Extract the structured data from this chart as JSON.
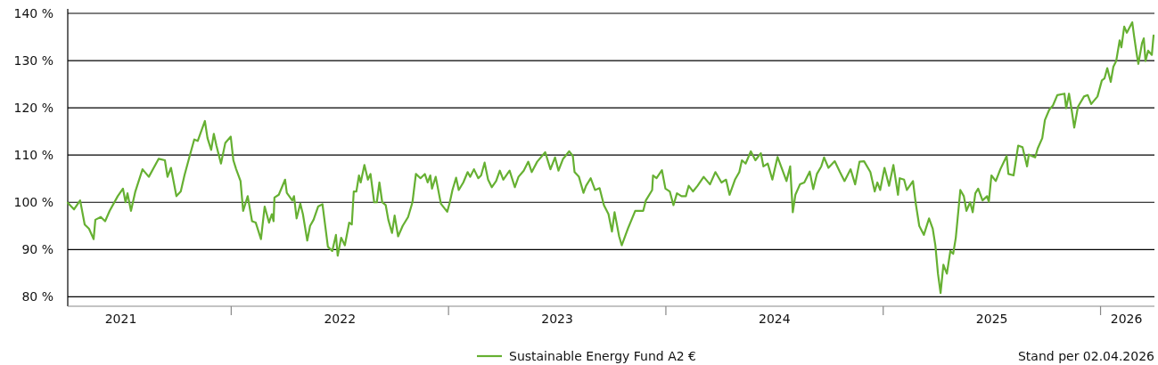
{
  "chart_data": {
    "type": "line",
    "xlim": [
      2021.25,
      2026.25
    ],
    "ylim": [
      78,
      140
    ],
    "xticks": [
      {
        "value": 2021.492,
        "label": "2021"
      },
      {
        "value": 2022,
        "label": null
      },
      {
        "value": 2022.5,
        "label": "2022"
      },
      {
        "value": 2023,
        "label": null
      },
      {
        "value": 2023.5,
        "label": "2023"
      },
      {
        "value": 2024,
        "label": null
      },
      {
        "value": 2024.5,
        "label": "2024"
      },
      {
        "value": 2025,
        "label": null
      },
      {
        "value": 2025.5,
        "label": "2025"
      },
      {
        "value": 2026,
        "label": null
      },
      {
        "value": 2026.119,
        "label": "2026"
      }
    ],
    "yticks": [
      {
        "value": 80,
        "label": "80 %"
      },
      {
        "value": 90,
        "label": "90 %"
      },
      {
        "value": 100,
        "label": "100 %"
      },
      {
        "value": 110,
        "label": "110 %"
      },
      {
        "value": 120,
        "label": "120 %"
      },
      {
        "value": 130,
        "label": "130 %"
      },
      {
        "value": 140,
        "label": "140 %"
      }
    ],
    "grid": "y",
    "legend": "bottom",
    "line_style": "solid",
    "annotations": [
      "Stand per 02.04.2026"
    ],
    "series": [
      {
        "name": "Sustainable Energy Fund A2 €",
        "color": "#66b032",
        "x": [
          2021.25,
          2021.279,
          2021.307,
          2021.328,
          2021.348,
          2021.369,
          2021.377,
          2021.402,
          2021.422,
          2021.443,
          2021.48,
          2021.504,
          2021.516,
          2021.525,
          2021.541,
          2021.561,
          2021.594,
          2021.623,
          2021.668,
          2021.697,
          2021.709,
          2021.725,
          2021.75,
          2021.77,
          2021.787,
          2021.811,
          2021.832,
          2021.848,
          2021.881,
          2021.893,
          2021.91,
          2021.922,
          2021.934,
          2021.955,
          2021.975,
          2022.0,
          2022.012,
          2022.025,
          2022.045,
          2022.057,
          2022.078,
          2022.098,
          2022.115,
          2022.139,
          2022.156,
          2022.176,
          2022.189,
          2022.197,
          2022.201,
          2022.221,
          2022.25,
          2022.258,
          2022.283,
          2022.291,
          2022.303,
          2022.32,
          2022.332,
          2022.352,
          2022.365,
          2022.381,
          2022.402,
          2022.422,
          2022.447,
          2022.467,
          2022.484,
          2022.492,
          2022.508,
          2022.525,
          2022.545,
          2022.557,
          2022.566,
          2022.578,
          2022.59,
          2022.598,
          2022.615,
          2022.631,
          2022.643,
          2022.66,
          2022.672,
          2022.684,
          2022.697,
          2022.713,
          2022.725,
          2022.742,
          2022.754,
          2022.77,
          2022.791,
          2022.816,
          2022.836,
          2022.852,
          2022.873,
          2022.893,
          2022.906,
          2022.918,
          2022.926,
          2022.943,
          2022.967,
          2022.996,
          2023.008,
          2023.02,
          2023.037,
          2023.049,
          2023.07,
          2023.09,
          2023.102,
          2023.119,
          2023.139,
          2023.152,
          2023.168,
          2023.184,
          2023.201,
          2023.221,
          2023.238,
          2023.254,
          2023.283,
          2023.307,
          2023.324,
          2023.348,
          2023.369,
          2023.385,
          2023.41,
          2023.447,
          2023.471,
          2023.492,
          2023.508,
          2023.529,
          2023.557,
          2023.574,
          2023.582,
          2023.602,
          2023.623,
          2023.635,
          2023.656,
          2023.676,
          2023.697,
          2023.717,
          2023.738,
          2023.754,
          2023.766,
          2023.787,
          2023.799,
          2023.828,
          2023.861,
          2023.898,
          2023.91,
          2023.939,
          2023.943,
          2023.959,
          2023.984,
          2024.0,
          2024.02,
          2024.037,
          2024.053,
          2024.074,
          2024.094,
          2024.107,
          2024.127,
          2024.148,
          2024.176,
          2024.205,
          2024.23,
          2024.258,
          2024.279,
          2024.295,
          2024.32,
          2024.34,
          2024.352,
          2024.369,
          2024.393,
          2024.414,
          2024.439,
          2024.451,
          2024.471,
          2024.492,
          2024.516,
          2024.537,
          2024.557,
          2024.574,
          2024.586,
          2024.598,
          2024.619,
          2024.639,
          2024.664,
          2024.68,
          2024.697,
          2024.717,
          2024.73,
          2024.75,
          2024.779,
          2024.803,
          2024.824,
          2024.852,
          2024.873,
          2024.893,
          2024.914,
          2024.943,
          2024.963,
          2024.975,
          2024.988,
          2025.008,
          2025.029,
          2025.049,
          2025.07,
          2025.078,
          2025.098,
          2025.111,
          2025.139,
          2025.152,
          2025.168,
          2025.189,
          2025.213,
          2025.23,
          2025.242,
          2025.254,
          2025.266,
          2025.279,
          2025.295,
          2025.311,
          2025.324,
          2025.336,
          2025.357,
          2025.373,
          2025.385,
          2025.402,
          2025.414,
          2025.426,
          2025.439,
          2025.459,
          2025.48,
          2025.488,
          2025.5,
          2025.52,
          2025.541,
          2025.57,
          2025.578,
          2025.602,
          2025.623,
          2025.643,
          2025.664,
          2025.672,
          2025.701,
          2025.713,
          2025.734,
          2025.746,
          2025.766,
          2025.783,
          2025.803,
          2025.836,
          2025.844,
          2025.857,
          2025.869,
          2025.881,
          2025.898,
          2025.926,
          2025.943,
          2025.959,
          2025.988,
          2026.008,
          2026.02,
          2026.033,
          2026.049,
          2026.061,
          2026.074,
          2026.09,
          2026.098,
          2026.111,
          2026.123,
          2026.148,
          2026.156,
          2026.168,
          2026.176,
          2026.193,
          2026.201,
          2026.209,
          2026.221,
          2026.238,
          2026.246
        ],
        "values": [
          99.9,
          98.5,
          100.4,
          95.3,
          94.4,
          92.2,
          96.3,
          96.9,
          96,
          98.2,
          101.3,
          102.9,
          100,
          101.9,
          98.2,
          102.3,
          107,
          105.4,
          109.2,
          108.9,
          105.4,
          107.3,
          101.3,
          102.3,
          105.7,
          109.8,
          113.3,
          113,
          117.2,
          113.6,
          111.1,
          114.5,
          112,
          108.2,
          112.6,
          113.9,
          108.9,
          107,
          104.5,
          98.2,
          101.3,
          96,
          95.7,
          92.2,
          99.1,
          95.7,
          97.5,
          96,
          101,
          101.6,
          104.8,
          102,
          100.4,
          101.3,
          96.6,
          99.7,
          97.5,
          91.9,
          95,
          96.3,
          99.1,
          99.6,
          90.6,
          89.7,
          93.1,
          88.7,
          92.5,
          90.9,
          95.7,
          95.3,
          102.3,
          102.3,
          105.7,
          104.2,
          107.9,
          104.8,
          106,
          100,
          100,
          104.2,
          100,
          99.4,
          96.3,
          93.5,
          97.2,
          92.8,
          95,
          96.9,
          100,
          106,
          105.1,
          106,
          104.2,
          105.7,
          102.9,
          105.4,
          99.7,
          98,
          100,
          102.6,
          105.2,
          102.6,
          104.2,
          106.4,
          105.4,
          107,
          105.1,
          105.7,
          108.4,
          104.8,
          103.2,
          104.5,
          106.7,
          104.8,
          106.7,
          103.2,
          105.4,
          106.7,
          108.6,
          106.4,
          108.6,
          110.6,
          107,
          109.5,
          106.7,
          109.2,
          110.8,
          109.8,
          106.4,
          105.4,
          102,
          103.5,
          105.1,
          102.6,
          103,
          99.4,
          97.5,
          93.8,
          97.9,
          92.8,
          90.9,
          94.5,
          98.2,
          98.2,
          100.4,
          102.6,
          105.7,
          105.1,
          106.8,
          102.9,
          102.3,
          99.4,
          101.9,
          101.3,
          101.3,
          103.5,
          102.3,
          103.5,
          105.4,
          103.8,
          106.4,
          104.2,
          104.8,
          101.6,
          104.8,
          106.4,
          108.9,
          108.2,
          110.8,
          108.9,
          110.4,
          107.6,
          108.2,
          104.8,
          109.6,
          107,
          104.5,
          107.6,
          97.9,
          101.6,
          103.8,
          104.2,
          106.5,
          102.8,
          106,
          107.6,
          109.5,
          107.3,
          108.7,
          106.4,
          104.5,
          107,
          103.8,
          108.6,
          108.7,
          106.4,
          102.3,
          104.2,
          102.6,
          107.3,
          103.5,
          107.9,
          101.6,
          105.1,
          104.8,
          102.6,
          104.5,
          99.7,
          95,
          93.1,
          96.6,
          94.4,
          90.9,
          84.9,
          80.8,
          86.8,
          84.9,
          89.7,
          89.1,
          92.5,
          102.6,
          101.3,
          98.2,
          100,
          97.9,
          101.9,
          102.9,
          100.4,
          101.3,
          100.1,
          105.7,
          104.5,
          107,
          109.8,
          106,
          105.7,
          112,
          111.7,
          107.6,
          110.1,
          109.5,
          111.4,
          113.6,
          117.4,
          119.6,
          120.5,
          122.7,
          123,
          119.9,
          123,
          119.6,
          115.8,
          120.2,
          122.4,
          122.7,
          120.8,
          122.4,
          125.8,
          126.2,
          128.4,
          125.5,
          128.7,
          129.9,
          134.3,
          132.8,
          137.2,
          135.9,
          138.1,
          135.3,
          131.5,
          129.3,
          133.7,
          134.7,
          129.9,
          132.1,
          131.2,
          135.3
        ]
      }
    ]
  }
}
